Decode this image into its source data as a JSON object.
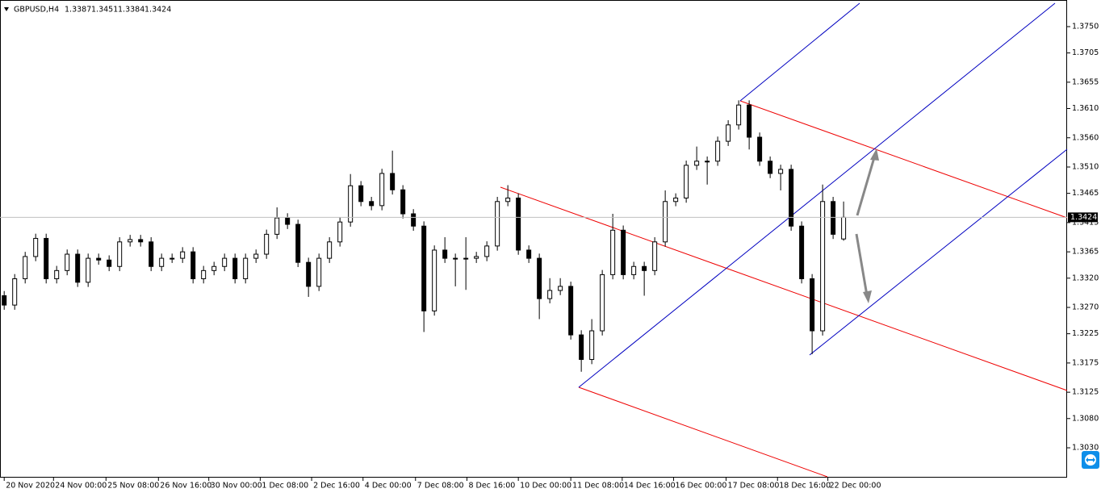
{
  "chart_data": {
    "type": "candlestick",
    "symbol": "GBPUSD,H4",
    "header_ohlc": [
      1.3387,
      1.3451,
      1.3384,
      1.3424
    ],
    "current_price": 1.3424,
    "series": {
      "open": [
        1.329,
        1.3274,
        1.3319,
        1.3357,
        1.3388,
        1.3319,
        1.3333,
        1.3361,
        1.3313,
        1.3354,
        1.3351,
        1.334,
        1.3382,
        1.3386,
        1.3382,
        1.334,
        1.3354,
        1.3354,
        1.3365,
        1.3319,
        1.3333,
        1.334,
        1.3354,
        1.3319,
        1.3354,
        1.3361,
        1.3395,
        1.3423,
        1.3412,
        1.3347,
        1.3306,
        1.3354,
        1.3382,
        1.3416,
        1.3478,
        1.3451,
        1.3444,
        1.3499,
        1.3471,
        1.343,
        1.3409,
        1.3264,
        1.3368,
        1.3354,
        1.3354,
        1.3354,
        1.3357,
        1.3375,
        1.3451,
        1.3457,
        1.3368,
        1.3354,
        1.3285,
        1.3299,
        1.3306,
        1.3223,
        1.3181,
        1.323,
        1.3326,
        1.3402,
        1.3326,
        1.334,
        1.3333,
        1.3382,
        1.3451,
        1.3457,
        1.3513,
        1.352,
        1.352,
        1.3554,
        1.3582,
        1.3616,
        1.3561,
        1.352,
        1.3499,
        1.3506,
        1.3409,
        1.3319,
        1.323,
        1.3451,
        1.3387
      ],
      "high": [
        1.3298,
        1.3327,
        1.3365,
        1.3396,
        1.3396,
        1.3341,
        1.3369,
        1.3369,
        1.3362,
        1.3362,
        1.3359,
        1.339,
        1.3394,
        1.3394,
        1.339,
        1.3362,
        1.3362,
        1.3373,
        1.3373,
        1.3341,
        1.3348,
        1.3362,
        1.3362,
        1.3362,
        1.3369,
        1.3403,
        1.3441,
        1.3431,
        1.342,
        1.3355,
        1.3362,
        1.339,
        1.3424,
        1.3498,
        1.3486,
        1.3459,
        1.3507,
        1.3538,
        1.3479,
        1.3438,
        1.3417,
        1.3376,
        1.339,
        1.3362,
        1.339,
        1.3365,
        1.3383,
        1.3459,
        1.3479,
        1.3465,
        1.3376,
        1.3362,
        1.332,
        1.332,
        1.3314,
        1.3231,
        1.325,
        1.3334,
        1.343,
        1.341,
        1.3348,
        1.3348,
        1.339,
        1.347,
        1.3465,
        1.3521,
        1.3545,
        1.3528,
        1.3562,
        1.359,
        1.3624,
        1.3624,
        1.3569,
        1.3528,
        1.3514,
        1.3514,
        1.3417,
        1.3327,
        1.348,
        1.3459,
        1.3451
      ],
      "low": [
        1.3266,
        1.3266,
        1.3311,
        1.3349,
        1.3311,
        1.3311,
        1.3325,
        1.3305,
        1.3305,
        1.3343,
        1.3332,
        1.3332,
        1.3374,
        1.3374,
        1.3332,
        1.3332,
        1.3346,
        1.3346,
        1.3311,
        1.3311,
        1.3325,
        1.3332,
        1.3311,
        1.3311,
        1.3346,
        1.3353,
        1.3387,
        1.3404,
        1.3339,
        1.3288,
        1.3298,
        1.3346,
        1.3374,
        1.3408,
        1.3443,
        1.3436,
        1.3436,
        1.3463,
        1.3422,
        1.3401,
        1.3228,
        1.3256,
        1.3346,
        1.3306,
        1.33,
        1.3346,
        1.3349,
        1.3367,
        1.3443,
        1.336,
        1.3346,
        1.325,
        1.3277,
        1.3291,
        1.3215,
        1.316,
        1.3173,
        1.3222,
        1.3318,
        1.3318,
        1.3318,
        1.329,
        1.3325,
        1.3374,
        1.3443,
        1.3449,
        1.3505,
        1.348,
        1.3512,
        1.3546,
        1.3574,
        1.354,
        1.3512,
        1.3491,
        1.347,
        1.3401,
        1.3311,
        1.319,
        1.3222,
        1.3387,
        1.3384
      ],
      "close": [
        1.3274,
        1.3319,
        1.3357,
        1.3388,
        1.3319,
        1.3333,
        1.3361,
        1.3313,
        1.3354,
        1.3351,
        1.334,
        1.3382,
        1.3386,
        1.3382,
        1.334,
        1.3354,
        1.3354,
        1.3365,
        1.3319,
        1.3333,
        1.334,
        1.3354,
        1.3319,
        1.3354,
        1.3361,
        1.3395,
        1.3423,
        1.3412,
        1.3347,
        1.3306,
        1.3354,
        1.3382,
        1.3416,
        1.3478,
        1.3451,
        1.3444,
        1.3499,
        1.3471,
        1.343,
        1.3409,
        1.3264,
        1.3368,
        1.3354,
        1.3354,
        1.3354,
        1.3357,
        1.3375,
        1.3451,
        1.3457,
        1.3368,
        1.3354,
        1.3285,
        1.3299,
        1.3306,
        1.3223,
        1.3181,
        1.323,
        1.3326,
        1.3402,
        1.3326,
        1.334,
        1.3333,
        1.3382,
        1.3451,
        1.3457,
        1.3513,
        1.352,
        1.352,
        1.3554,
        1.3582,
        1.3616,
        1.3561,
        1.352,
        1.3499,
        1.3506,
        1.3409,
        1.3319,
        1.323,
        1.3451,
        1.3395,
        1.3424
      ]
    },
    "xlim": [
      -0.4,
      101.3
    ],
    "xticks": [
      {
        "value": 0,
        "label": "20 Nov 2020"
      },
      {
        "value": 4.7,
        "label": "24 Nov 00:00"
      },
      {
        "value": 9.7,
        "label": "25 Nov 08:00"
      },
      {
        "value": 14.7,
        "label": "26 Nov 16:00"
      },
      {
        "value": 19.5,
        "label": "30 Nov 00:00"
      },
      {
        "value": 24.4,
        "label": "1 Dec 08:00"
      },
      {
        "value": 29.3,
        "label": "2 Dec 16:00"
      },
      {
        "value": 34.2,
        "label": "4 Dec 00:00"
      },
      {
        "value": 39.2,
        "label": "7 Dec 08:00"
      },
      {
        "value": 44.1,
        "label": "8 Dec 16:00"
      },
      {
        "value": 49,
        "label": "10 Dec 00:00"
      },
      {
        "value": 54,
        "label": "11 Dec 08:00"
      },
      {
        "value": 58.9,
        "label": "14 Dec 16:00"
      },
      {
        "value": 63.8,
        "label": "16 Dec 00:00"
      },
      {
        "value": 68.8,
        "label": "17 Dec 08:00"
      },
      {
        "value": 73.7,
        "label": "18 Dec 16:00"
      },
      {
        "value": 78.5,
        "label": "22 Dec 00:00"
      }
    ],
    "ylim": [
      1.2979,
      1.379
    ],
    "yticks": [
      {
        "value": 1.375,
        "label": "1.3750"
      },
      {
        "value": 1.3705,
        "label": "1.3705"
      },
      1.3655,
      {
        "value": 1.361,
        "label": "1.3610"
      },
      {
        "value": 1.356,
        "label": "1.3560"
      },
      {
        "value": 1.351,
        "label": "1.3510"
      },
      1.3465,
      1.3415,
      1.3365,
      {
        "value": 1.332,
        "label": "1.3320"
      },
      {
        "value": 1.327,
        "label": "1.3270"
      },
      1.3225,
      1.3175,
      1.3125,
      {
        "value": 1.308,
        "label": "1.3080"
      },
      {
        "value": 1.303,
        "label": "1.3030"
      }
    ]
  }
}
